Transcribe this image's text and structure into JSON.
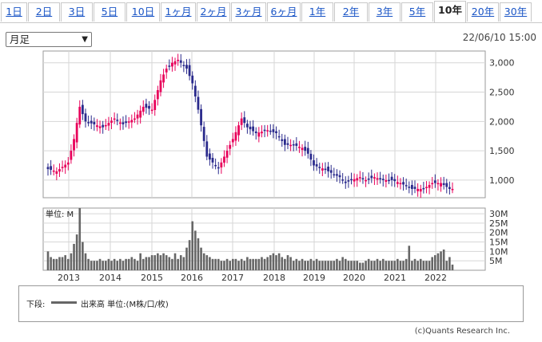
{
  "tabs": [
    "1日",
    "2日",
    "3日",
    "5日",
    "10日",
    "1ヶ月",
    "2ヶ月",
    "3ヶ月",
    "6ヶ月",
    "1年",
    "2年",
    "3年",
    "5年",
    "10年",
    "20年",
    "30年"
  ],
  "active_tab": "10年",
  "period_select": "月足",
  "timestamp": "22/06/10 15:00",
  "volume_panel_label": "単位: M",
  "legend": {
    "label": "下段:",
    "text": "出来高 単位:(M株/口/枚)"
  },
  "copyright": "(c)Quants Research Inc.",
  "colors": {
    "up": "#e8005a",
    "down": "#2a2a8c",
    "volume": "#666666",
    "grid": "#d6d6d6",
    "border": "#9a9a9a"
  },
  "chart_data": {
    "type": "candlestick",
    "x_tick_labels": [
      "2013",
      "2014",
      "2015",
      "2016",
      "2017",
      "2018",
      "2019",
      "2020",
      "2021",
      "2022"
    ],
    "price_axis": {
      "ticks": [
        "3,000",
        "2,500",
        "2,000",
        "1,500",
        "1,000"
      ],
      "ylim": [
        700,
        3200
      ]
    },
    "volume_axis": {
      "ticks": [
        "30M",
        "25M",
        "20M",
        "15M",
        "10M",
        "5M"
      ],
      "ylim": [
        0,
        33
      ]
    },
    "grid": true,
    "series": [
      {
        "name": "出来高",
        "values": [
          10,
          7,
          6,
          6,
          7,
          7,
          8,
          6,
          9,
          14,
          19,
          33,
          15,
          9,
          6,
          5,
          5,
          5,
          6,
          5,
          5,
          6,
          5,
          6,
          5,
          6,
          5,
          6,
          6,
          7,
          6,
          5,
          9,
          6,
          7,
          7,
          8,
          8,
          9,
          8,
          9,
          8,
          7,
          6,
          9,
          6,
          8,
          7,
          12,
          16,
          26,
          21,
          17,
          12,
          9,
          8,
          7,
          6,
          6,
          6,
          5,
          5,
          6,
          5,
          6,
          6,
          5,
          6,
          5,
          7,
          6,
          6,
          6,
          6,
          7,
          6,
          7,
          8,
          9,
          8,
          9,
          7,
          6,
          8,
          7,
          5,
          6,
          5,
          6,
          5,
          5,
          6,
          5,
          6,
          5,
          5,
          5,
          5,
          5,
          5,
          6,
          5,
          7,
          6,
          5,
          5,
          5,
          5,
          4,
          4,
          5,
          6,
          5,
          5,
          6,
          5,
          6,
          5,
          5,
          5,
          5,
          6,
          5,
          5,
          6,
          13,
          5,
          6,
          5,
          6,
          5,
          5,
          5,
          7,
          8,
          9,
          10,
          11,
          5,
          7,
          3
        ]
      }
    ]
  }
}
